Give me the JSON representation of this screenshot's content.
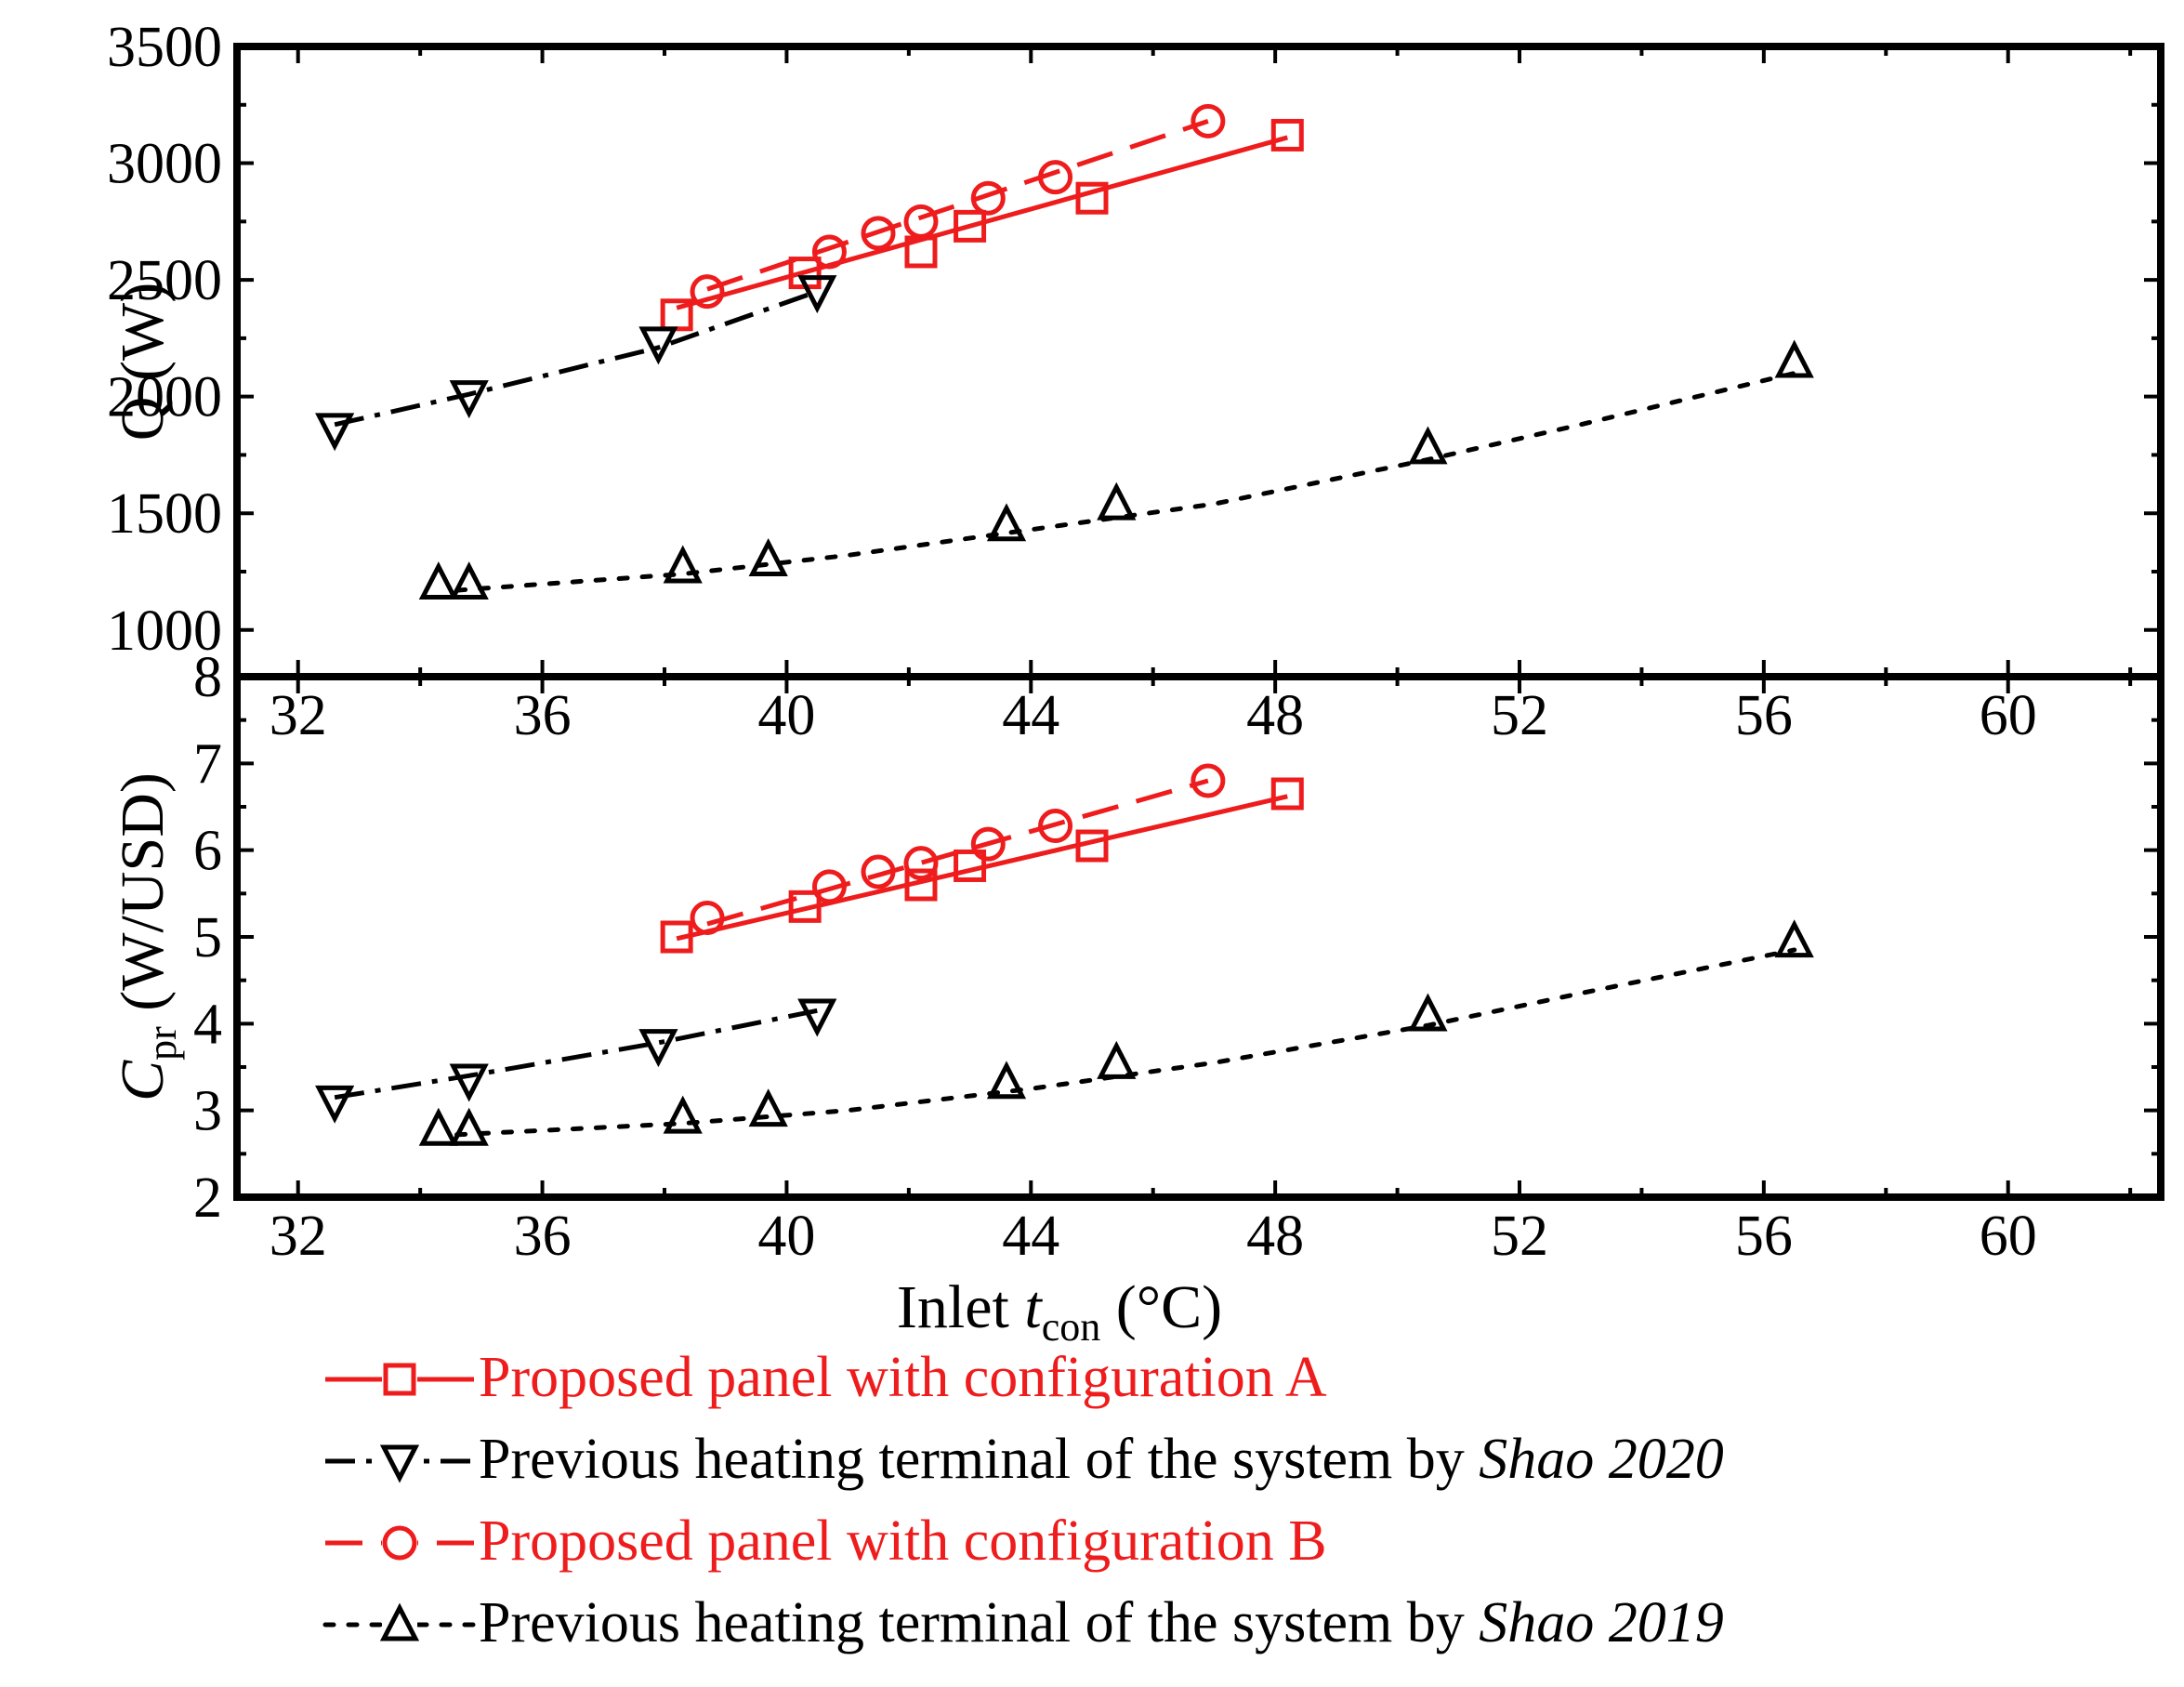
{
  "colors": {
    "red": "#ee1c1c",
    "black": "#000000"
  },
  "x_axis": {
    "label_prefix": "Inlet ",
    "label_var": "t",
    "label_sub": "con",
    "label_suffix": " (°C)"
  },
  "legend": [
    {
      "series_id": "A",
      "text": "Proposed  panel with configuration A",
      "italic": ""
    },
    {
      "series_id": "S2020",
      "text": "Previous heating terminal of the system by ",
      "italic": "Shao 2020"
    },
    {
      "series_id": "B",
      "text": "Proposed  panel with configuration B",
      "italic": ""
    },
    {
      "series_id": "S2019",
      "text": "Previous heating terminal of the system by ",
      "italic": "Shao 2019"
    }
  ],
  "chart_data": [
    {
      "id": "top",
      "type": "scatter",
      "title": "",
      "xlabel": "Inlet t_con (°C)",
      "ylabel": "Q (W)",
      "xlim": [
        31,
        62.5
      ],
      "ylim": [
        800,
        3500
      ],
      "xticks": [
        32,
        36,
        40,
        44,
        48,
        52,
        56,
        60
      ],
      "yticks": [
        1000,
        1500,
        2000,
        2500,
        3000,
        3500
      ],
      "ylabel_parts": {
        "main": "Q",
        "sub": "",
        "unit": " (W)"
      },
      "series": [
        {
          "id": "A",
          "name": "Proposed panel with configuration A",
          "color": "red",
          "marker": "square",
          "line": "solid",
          "x": [
            38.2,
            40.3,
            42.2,
            43.0,
            45.0,
            48.2
          ],
          "y": [
            2350,
            2530,
            2620,
            2730,
            2850,
            3120
          ],
          "fit": [
            [
              38.2,
              2380
            ],
            [
              48.2,
              3110
            ]
          ]
        },
        {
          "id": "B",
          "name": "Proposed panel with configuration B",
          "color": "red",
          "marker": "circle",
          "line": "dash",
          "x": [
            38.7,
            40.7,
            41.5,
            42.2,
            43.3,
            44.4,
            46.9
          ],
          "y": [
            2450,
            2620,
            2700,
            2750,
            2850,
            2940,
            3180
          ],
          "fit": [
            [
              38.7,
              2460
            ],
            [
              46.9,
              3180
            ]
          ]
        },
        {
          "id": "S2020",
          "name": "Previous heating terminal of the system by Shao 2020",
          "color": "black",
          "marker": "triangle-down",
          "line": "dashdot",
          "x": [
            32.6,
            34.8,
            37.9,
            40.5
          ],
          "y": [
            1860,
            2000,
            2230,
            2450
          ],
          "fit": [
            [
              32.6,
              1880
            ],
            [
              34.8,
              2010
            ],
            [
              37.9,
              2210
            ],
            [
              40.5,
              2450
            ]
          ]
        },
        {
          "id": "S2019",
          "name": "Previous heating terminal of the system by Shao 2019",
          "color": "black",
          "marker": "triangle-up",
          "line": "dot",
          "x": [
            34.3,
            34.8,
            38.3,
            39.7,
            43.6,
            45.4,
            50.5,
            56.5
          ],
          "y": [
            1200,
            1200,
            1270,
            1300,
            1450,
            1540,
            1780,
            2150
          ],
          "fit": [
            [
              34.6,
              1170
            ],
            [
              38.3,
              1240
            ],
            [
              41,
              1320
            ],
            [
              44,
              1430
            ],
            [
              47,
              1540
            ],
            [
              50.5,
              1730
            ],
            [
              53,
              1880
            ],
            [
              56.5,
              2100
            ]
          ]
        }
      ]
    },
    {
      "id": "bottom",
      "type": "scatter",
      "title": "",
      "xlabel": "Inlet t_con (°C)",
      "ylabel": "C_pr (W/USD)",
      "xlim": [
        31,
        62.5
      ],
      "ylim": [
        2,
        8
      ],
      "xticks": [
        32,
        36,
        40,
        44,
        48,
        52,
        56,
        60
      ],
      "yticks": [
        2,
        3,
        4,
        5,
        6,
        7,
        8
      ],
      "ylabel_parts": {
        "main": "C",
        "sub": "pr",
        "unit": " (W/USD)"
      },
      "series": [
        {
          "id": "A",
          "name": "Proposed panel with configuration A",
          "color": "red",
          "marker": "square",
          "line": "solid",
          "x": [
            38.2,
            40.3,
            42.2,
            43.0,
            45.0,
            48.2
          ],
          "y": [
            5.0,
            5.35,
            5.6,
            5.82,
            6.05,
            6.65
          ],
          "fit": [
            [
              38.2,
              4.98
            ],
            [
              48.2,
              6.62
            ]
          ]
        },
        {
          "id": "B",
          "name": "Proposed panel with configuration B",
          "color": "red",
          "marker": "circle",
          "line": "dash",
          "x": [
            38.7,
            40.7,
            41.5,
            42.2,
            43.3,
            44.4,
            46.9
          ],
          "y": [
            5.22,
            5.58,
            5.75,
            5.85,
            6.07,
            6.28,
            6.8
          ],
          "fit": [
            [
              38.7,
              5.15
            ],
            [
              46.9,
              6.8
            ]
          ]
        },
        {
          "id": "S2020",
          "name": "Previous heating terminal of the system by Shao 2020",
          "color": "black",
          "marker": "triangle-down",
          "line": "dashdot",
          "x": [
            32.6,
            34.8,
            37.9,
            40.5
          ],
          "y": [
            3.1,
            3.35,
            3.75,
            4.1
          ],
          "fit": [
            [
              32.6,
              3.15
            ],
            [
              34.8,
              3.4
            ],
            [
              37.9,
              3.78
            ],
            [
              40.5,
              4.15
            ]
          ]
        },
        {
          "id": "S2019",
          "name": "Previous heating terminal of the system by Shao 2019",
          "color": "black",
          "marker": "triangle-up",
          "line": "dot",
          "x": [
            34.3,
            34.8,
            38.3,
            39.7,
            43.6,
            45.4,
            50.5,
            56.5
          ],
          "y": [
            2.78,
            2.78,
            2.92,
            3.0,
            3.32,
            3.55,
            4.1,
            4.95
          ],
          "fit": [
            [
              34.6,
              2.72
            ],
            [
              38.3,
              2.85
            ],
            [
              41,
              3.0
            ],
            [
              44,
              3.25
            ],
            [
              47,
              3.55
            ],
            [
              50.5,
              3.98
            ],
            [
              53,
              4.35
            ],
            [
              56.5,
              4.85
            ]
          ]
        }
      ]
    }
  ]
}
